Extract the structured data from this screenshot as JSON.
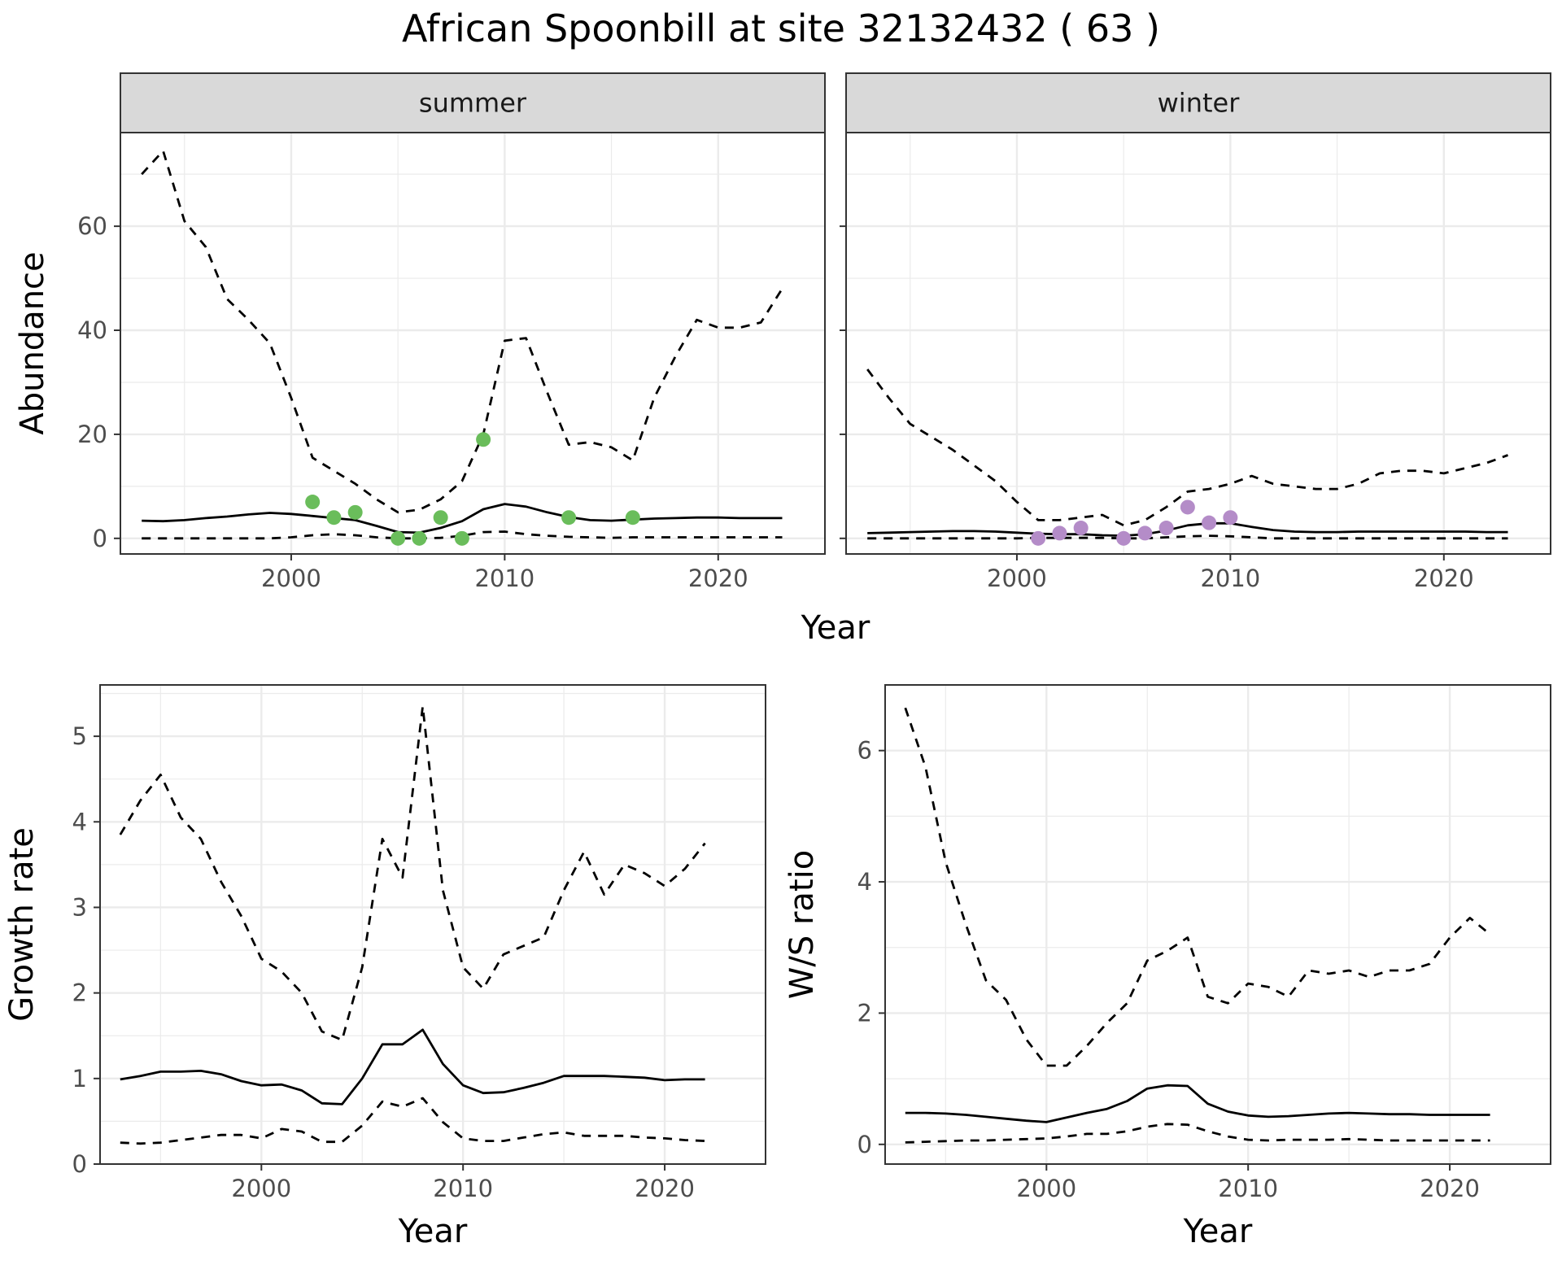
{
  "figure": {
    "title": "African Spoonbill at site 32132432 ( 63 )",
    "line_color": "#000000",
    "summer_point_color": "#6abd5b",
    "winter_point_color": "#b48cc8",
    "grid_color": "#ebebeb",
    "strip_fill": "#d9d9d9"
  },
  "chart_data": [
    {
      "type": "line",
      "panel": "summer",
      "strip": "summer",
      "ylabel": "Abundance",
      "xlim": [
        1992,
        2025
      ],
      "ylim": [
        -3,
        78
      ],
      "x_ticks": [
        2000,
        2010,
        2020
      ],
      "y_ticks": [
        0,
        20,
        40,
        60
      ],
      "series": [
        {
          "role": "mean",
          "style": "solid",
          "x": [
            1993,
            1994,
            1995,
            1996,
            1997,
            1998,
            1999,
            2000,
            2001,
            2002,
            2003,
            2004,
            2005,
            2006,
            2007,
            2008,
            2009,
            2010,
            2011,
            2012,
            2013,
            2014,
            2015,
            2016,
            2017,
            2018,
            2019,
            2020,
            2021,
            2022,
            2023
          ],
          "y": [
            3.4,
            3.3,
            3.5,
            3.9,
            4.2,
            4.6,
            4.9,
            4.7,
            4.3,
            3.9,
            3.5,
            2.4,
            1.2,
            1.1,
            2.0,
            3.3,
            5.6,
            6.6,
            6.1,
            5.0,
            4.1,
            3.5,
            3.4,
            3.6,
            3.8,
            3.9,
            4.0,
            4.0,
            3.9,
            3.9,
            3.9
          ]
        },
        {
          "role": "upper",
          "style": "dashed",
          "x": [
            1993,
            1994,
            1995,
            1996,
            1997,
            1998,
            1999,
            2000,
            2001,
            2002,
            2003,
            2004,
            2005,
            2006,
            2007,
            2008,
            2009,
            2010,
            2011,
            2012,
            2013,
            2014,
            2015,
            2016,
            2017,
            2018,
            2019,
            2020,
            2021,
            2022,
            2023
          ],
          "y": [
            70,
            74.5,
            61,
            56,
            46,
            42,
            37.5,
            27,
            15.5,
            13,
            10.5,
            7.5,
            5,
            5.5,
            7.5,
            11,
            20,
            38,
            38.5,
            28,
            18,
            18.5,
            17.5,
            15,
            27,
            35,
            42,
            40.5,
            40.5,
            41.5,
            48
          ]
        },
        {
          "role": "lower",
          "style": "dashed",
          "x": [
            1993,
            1994,
            1995,
            1996,
            1997,
            1998,
            1999,
            2000,
            2001,
            2002,
            2003,
            2004,
            2005,
            2006,
            2007,
            2008,
            2009,
            2010,
            2011,
            2012,
            2013,
            2014,
            2015,
            2016,
            2017,
            2018,
            2019,
            2020,
            2021,
            2022,
            2023
          ],
          "y": [
            0,
            0,
            0,
            0,
            0,
            0,
            0,
            0.2,
            0.6,
            0.8,
            0.6,
            0.2,
            0,
            0,
            0.1,
            0.5,
            1.2,
            1.3,
            0.8,
            0.5,
            0.3,
            0.2,
            0.1,
            0.2,
            0.2,
            0.2,
            0.2,
            0.2,
            0.2,
            0.2,
            0.2
          ]
        }
      ],
      "points": {
        "x": [
          2001,
          2002,
          2003,
          2005,
          2006,
          2007,
          2008,
          2009,
          2013,
          2016
        ],
        "y": [
          7,
          4,
          5,
          0,
          0,
          4,
          0,
          19,
          4,
          4
        ]
      }
    },
    {
      "type": "line",
      "panel": "winter",
      "strip": "winter",
      "ylabel": "",
      "xlim": [
        1992,
        2025
      ],
      "ylim": [
        -3,
        78
      ],
      "x_ticks": [
        2000,
        2010,
        2020
      ],
      "y_ticks": [
        0,
        20,
        40,
        60
      ],
      "series": [
        {
          "role": "mean",
          "style": "solid",
          "x": [
            1993,
            1994,
            1995,
            1996,
            1997,
            1998,
            1999,
            2000,
            2001,
            2002,
            2003,
            2004,
            2005,
            2006,
            2007,
            2008,
            2009,
            2010,
            2011,
            2012,
            2013,
            2014,
            2015,
            2016,
            2017,
            2018,
            2019,
            2020,
            2021,
            2022,
            2023
          ],
          "y": [
            1.0,
            1.1,
            1.2,
            1.3,
            1.4,
            1.4,
            1.3,
            1.1,
            0.9,
            0.8,
            0.8,
            0.6,
            0.5,
            0.8,
            1.5,
            2.5,
            2.9,
            2.9,
            2.2,
            1.6,
            1.3,
            1.2,
            1.2,
            1.3,
            1.3,
            1.3,
            1.3,
            1.3,
            1.3,
            1.2,
            1.2
          ]
        },
        {
          "role": "upper",
          "style": "dashed",
          "x": [
            1993,
            1994,
            1995,
            1996,
            1997,
            1998,
            1999,
            2000,
            2001,
            2002,
            2003,
            2004,
            2005,
            2006,
            2007,
            2008,
            2009,
            2010,
            2011,
            2012,
            2013,
            2014,
            2015,
            2016,
            2017,
            2018,
            2019,
            2020,
            2021,
            2022,
            2023
          ],
          "y": [
            32.5,
            27,
            22,
            19.5,
            17,
            14,
            11,
            7,
            3.5,
            3.5,
            4,
            4.5,
            2.5,
            3.5,
            6,
            9,
            9.5,
            10.5,
            12,
            10.5,
            10,
            9.5,
            9.5,
            10.5,
            12.5,
            13,
            13,
            12.5,
            13.5,
            14.5,
            16
          ]
        },
        {
          "role": "lower",
          "style": "dashed",
          "x": [
            1993,
            1994,
            1995,
            1996,
            1997,
            1998,
            1999,
            2000,
            2001,
            2002,
            2003,
            2004,
            2005,
            2006,
            2007,
            2008,
            2009,
            2010,
            2011,
            2012,
            2013,
            2014,
            2015,
            2016,
            2017,
            2018,
            2019,
            2020,
            2021,
            2022,
            2023
          ],
          "y": [
            0,
            0,
            0,
            0,
            0,
            0,
            0,
            0,
            0.1,
            0.1,
            0.1,
            0.1,
            0,
            0,
            0.2,
            0.4,
            0.5,
            0.4,
            0.2,
            0,
            0,
            0,
            0,
            0,
            0,
            0,
            0,
            0,
            0,
            0,
            0
          ]
        }
      ],
      "points": {
        "x": [
          2001,
          2002,
          2003,
          2005,
          2006,
          2007,
          2008,
          2009,
          2010
        ],
        "y": [
          0,
          1,
          2,
          0,
          1,
          2,
          6,
          3,
          4
        ]
      }
    },
    {
      "type": "line",
      "panel": "growth",
      "ylabel": "Growth rate",
      "xlabel": "Year",
      "xlim": [
        1992,
        2025
      ],
      "ylim": [
        0,
        5.6
      ],
      "x_ticks": [
        2000,
        2010,
        2020
      ],
      "y_ticks": [
        0,
        1,
        2,
        3,
        4,
        5
      ],
      "series": [
        {
          "role": "mean",
          "style": "solid",
          "x": [
            1993,
            1994,
            1995,
            1996,
            1997,
            1998,
            1999,
            2000,
            2001,
            2002,
            2003,
            2004,
            2005,
            2006,
            2007,
            2008,
            2009,
            2010,
            2011,
            2012,
            2013,
            2014,
            2015,
            2016,
            2017,
            2018,
            2019,
            2020,
            2021,
            2022
          ],
          "y": [
            0.99,
            1.03,
            1.08,
            1.08,
            1.09,
            1.05,
            0.97,
            0.92,
            0.93,
            0.86,
            0.71,
            0.7,
            1.0,
            1.4,
            1.4,
            1.57,
            1.17,
            0.92,
            0.83,
            0.84,
            0.89,
            0.95,
            1.03,
            1.03,
            1.03,
            1.02,
            1.01,
            0.98,
            0.99,
            0.99
          ]
        },
        {
          "role": "upper",
          "style": "dashed",
          "x": [
            1993,
            1994,
            1995,
            1996,
            1997,
            1998,
            1999,
            2000,
            2001,
            2002,
            2003,
            2004,
            2005,
            2006,
            2007,
            2008,
            2009,
            2010,
            2011,
            2012,
            2013,
            2014,
            2015,
            2016,
            2017,
            2018,
            2019,
            2020,
            2021,
            2022
          ],
          "y": [
            3.85,
            4.25,
            4.55,
            4.05,
            3.8,
            3.3,
            2.9,
            2.4,
            2.25,
            2.0,
            1.55,
            1.45,
            2.3,
            3.8,
            3.35,
            5.35,
            3.2,
            2.3,
            2.05,
            2.45,
            2.55,
            2.65,
            3.2,
            3.65,
            3.15,
            3.5,
            3.4,
            3.25,
            3.45,
            3.75
          ]
        },
        {
          "role": "lower",
          "style": "dashed",
          "x": [
            1993,
            1994,
            1995,
            1996,
            1997,
            1998,
            1999,
            2000,
            2001,
            2002,
            2003,
            2004,
            2005,
            2006,
            2007,
            2008,
            2009,
            2010,
            2011,
            2012,
            2013,
            2014,
            2015,
            2016,
            2017,
            2018,
            2019,
            2020,
            2021,
            2022
          ],
          "y": [
            0.25,
            0.24,
            0.25,
            0.28,
            0.31,
            0.34,
            0.34,
            0.3,
            0.41,
            0.38,
            0.26,
            0.26,
            0.45,
            0.73,
            0.67,
            0.77,
            0.49,
            0.3,
            0.27,
            0.27,
            0.31,
            0.35,
            0.37,
            0.33,
            0.33,
            0.33,
            0.31,
            0.3,
            0.28,
            0.27
          ]
        }
      ]
    },
    {
      "type": "line",
      "panel": "ratio",
      "ylabel": "W/S ratio",
      "xlabel": "Year",
      "xlim": [
        1992,
        2025
      ],
      "ylim": [
        -0.3,
        7.0
      ],
      "x_ticks": [
        2000,
        2010,
        2020
      ],
      "y_ticks": [
        0,
        2,
        4,
        6
      ],
      "series": [
        {
          "role": "mean",
          "style": "solid",
          "x": [
            1993,
            1994,
            1995,
            1996,
            1997,
            1998,
            1999,
            2000,
            2001,
            2002,
            2003,
            2004,
            2005,
            2006,
            2007,
            2008,
            2009,
            2010,
            2011,
            2012,
            2013,
            2014,
            2015,
            2016,
            2017,
            2018,
            2019,
            2020,
            2021,
            2022
          ],
          "y": [
            0.48,
            0.48,
            0.47,
            0.45,
            0.42,
            0.39,
            0.36,
            0.34,
            0.41,
            0.48,
            0.54,
            0.66,
            0.85,
            0.9,
            0.89,
            0.62,
            0.5,
            0.44,
            0.42,
            0.43,
            0.45,
            0.47,
            0.48,
            0.47,
            0.46,
            0.46,
            0.45,
            0.45,
            0.45,
            0.45
          ]
        },
        {
          "role": "upper",
          "style": "dashed",
          "x": [
            1993,
            1994,
            1995,
            1996,
            1997,
            1998,
            1999,
            2000,
            2001,
            2002,
            2003,
            2004,
            2005,
            2006,
            2007,
            2008,
            2009,
            2010,
            2011,
            2012,
            2013,
            2014,
            2015,
            2016,
            2017,
            2018,
            2019,
            2020,
            2021,
            2022
          ],
          "y": [
            6.65,
            5.75,
            4.3,
            3.35,
            2.5,
            2.2,
            1.6,
            1.2,
            1.2,
            1.5,
            1.85,
            2.15,
            2.8,
            2.95,
            3.15,
            2.25,
            2.15,
            2.45,
            2.4,
            2.25,
            2.65,
            2.6,
            2.65,
            2.55,
            2.65,
            2.65,
            2.75,
            3.15,
            3.45,
            3.2
          ]
        },
        {
          "role": "lower",
          "style": "dashed",
          "x": [
            1993,
            1994,
            1995,
            1996,
            1997,
            1998,
            1999,
            2000,
            2001,
            2002,
            2003,
            2004,
            2005,
            2006,
            2007,
            2008,
            2009,
            2010,
            2011,
            2012,
            2013,
            2014,
            2015,
            2016,
            2017,
            2018,
            2019,
            2020,
            2021,
            2022
          ],
          "y": [
            0.03,
            0.04,
            0.05,
            0.06,
            0.06,
            0.07,
            0.08,
            0.09,
            0.12,
            0.16,
            0.16,
            0.2,
            0.27,
            0.31,
            0.3,
            0.2,
            0.12,
            0.07,
            0.06,
            0.07,
            0.07,
            0.07,
            0.08,
            0.07,
            0.06,
            0.06,
            0.06,
            0.06,
            0.06,
            0.06
          ]
        }
      ]
    }
  ]
}
